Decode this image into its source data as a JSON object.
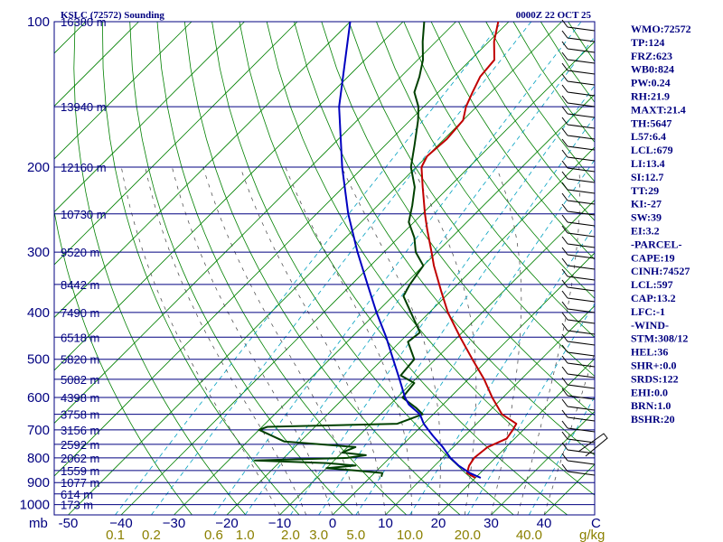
{
  "chart_data": {
    "type": "line",
    "title": "KSLC (72572) Sounding",
    "time_label": "0000Z 22 OCT 25",
    "pressure_levels": [
      100,
      200,
      300,
      400,
      500,
      600,
      700,
      800,
      900,
      1000
    ],
    "pressure_label_text": [
      "100",
      "200",
      "300",
      "400",
      "500",
      "600",
      "700",
      "800",
      "900",
      "1000"
    ],
    "pressure_axis_unit": "mb",
    "height_labels": [
      {
        "p": 150,
        "text": "13940 m"
      },
      {
        "p": 100,
        "text": "16380 m"
      },
      {
        "p": 200,
        "text": "12160 m"
      },
      {
        "p": 250,
        "text": "10730 m"
      },
      {
        "p": 300,
        "text": "9520 m"
      },
      {
        "p": 350,
        "text": "8442 m"
      },
      {
        "p": 400,
        "text": "7490 m"
      },
      {
        "p": 450,
        "text": "6518 m"
      },
      {
        "p": 500,
        "text": "5820 m"
      },
      {
        "p": 550,
        "text": "5082 m"
      },
      {
        "p": 600,
        "text": "4398 m"
      },
      {
        "p": 650,
        "text": "3758 m"
      },
      {
        "p": 700,
        "text": "3156 m"
      },
      {
        "p": 750,
        "text": "2592 m"
      },
      {
        "p": 800,
        "text": "2062 m"
      },
      {
        "p": 850,
        "text": "1559 m"
      },
      {
        "p": 900,
        "text": "1077 m"
      },
      {
        "p": 950,
        "text": "614 m"
      },
      {
        "p": 1000,
        "text": "173 m"
      }
    ],
    "temp_ticks": [
      -50,
      -40,
      -30,
      -20,
      -10,
      0,
      10,
      20,
      30,
      40
    ],
    "temp_tick_text": [
      "-50",
      "−40",
      "−30",
      "−20",
      "−10",
      "0",
      "10",
      "20",
      "30",
      "40"
    ],
    "temp_axis_unit": "C",
    "mixing_ratio_labels": [
      "0.1",
      "0.2",
      "0.6",
      "1.0",
      "2.0",
      "3.0",
      "5.0",
      "10.0",
      "20.0",
      "40.0"
    ],
    "mixing_ratio_unit": "g/kg",
    "series": [
      {
        "name": "",
        "role": "temperature",
        "color": "#c00000",
        "points": [
          [
            880,
            20.0
          ],
          [
            860,
            17.5
          ],
          [
            830,
            16.5
          ],
          [
            800,
            16.0
          ],
          [
            760,
            16.5
          ],
          [
            730,
            18.5
          ],
          [
            700,
            18.0
          ],
          [
            680,
            17.5
          ],
          [
            650,
            13.0
          ],
          [
            600,
            8.0
          ],
          [
            550,
            3.0
          ],
          [
            500,
            -3.0
          ],
          [
            450,
            -9.5
          ],
          [
            400,
            -16.5
          ],
          [
            360,
            -22.0
          ],
          [
            320,
            -28.0
          ],
          [
            300,
            -31.0
          ],
          [
            270,
            -36.0
          ],
          [
            250,
            -39.5
          ],
          [
            220,
            -45.0
          ],
          [
            200,
            -49.0
          ],
          [
            190,
            -50.0
          ],
          [
            175,
            -49.5
          ],
          [
            160,
            -50.0
          ],
          [
            150,
            -52.0
          ],
          [
            140,
            -53.5
          ],
          [
            130,
            -55.0
          ],
          [
            120,
            -55.5
          ],
          [
            110,
            -59.0
          ],
          [
            100,
            -62.0
          ]
        ]
      },
      {
        "name": "",
        "role": "dewpoint",
        "color": "#004000",
        "points": [
          [
            875,
            2.0
          ],
          [
            860,
            1.5
          ],
          [
            850,
            -4.0
          ],
          [
            840,
            -10.0
          ],
          [
            830,
            -5.0
          ],
          [
            820,
            -11.0
          ],
          [
            810,
            -25.0
          ],
          [
            800,
            -8.0
          ],
          [
            790,
            -5.0
          ],
          [
            780,
            -10.0
          ],
          [
            760,
            -8.5
          ],
          [
            740,
            -23.0
          ],
          [
            700,
            -30.0
          ],
          [
            690,
            -29.0
          ],
          [
            680,
            -5.0
          ],
          [
            650,
            -2.0
          ],
          [
            630,
            -4.5
          ],
          [
            600,
            -9.0
          ],
          [
            560,
            -9.5
          ],
          [
            540,
            -13.5
          ],
          [
            500,
            -14.0
          ],
          [
            460,
            -18.5
          ],
          [
            440,
            -18.0
          ],
          [
            400,
            -23.5
          ],
          [
            370,
            -28.0
          ],
          [
            350,
            -29.0
          ],
          [
            320,
            -30.0
          ],
          [
            300,
            -34.0
          ],
          [
            280,
            -37.0
          ],
          [
            260,
            -41.0
          ],
          [
            240,
            -43.5
          ],
          [
            220,
            -46.5
          ],
          [
            200,
            -51.0
          ],
          [
            180,
            -54.5
          ],
          [
            160,
            -58.5
          ],
          [
            150,
            -61.0
          ],
          [
            140,
            -64.5
          ],
          [
            130,
            -66.5
          ],
          [
            120,
            -69.0
          ],
          [
            110,
            -72.5
          ],
          [
            100,
            -76.0
          ]
        ]
      },
      {
        "name": "",
        "role": "parcel",
        "color": "#0000c0",
        "points": [
          [
            880,
            21.0
          ],
          [
            860,
            18.0
          ],
          [
            830,
            14.5
          ],
          [
            800,
            11.5
          ],
          [
            760,
            8.0
          ],
          [
            720,
            4.0
          ],
          [
            700,
            2.0
          ],
          [
            680,
            0.0
          ],
          [
            650,
            -2.5
          ],
          [
            620,
            -6.5
          ],
          [
            600,
            -8.5
          ],
          [
            550,
            -13.0
          ],
          [
            500,
            -18.0
          ],
          [
            450,
            -23.5
          ],
          [
            400,
            -30.0
          ],
          [
            350,
            -37.0
          ],
          [
            300,
            -45.0
          ],
          [
            250,
            -54.0
          ],
          [
            200,
            -64.0
          ],
          [
            150,
            -76.0
          ],
          [
            100,
            -90.0
          ]
        ]
      }
    ],
    "indices": [
      "WMO:72572",
      "TP:124",
      "FRZ:623",
      "WB0:824",
      "PW:0.24",
      "RH:21.9",
      "MAXT:21.4",
      "TH:5647",
      "L57:6.4",
      "LCL:679",
      "LI:13.4",
      "SI:12.7",
      "TT:29",
      "KI:-27",
      "SW:39",
      "EI:3.2",
      "-PARCEL-",
      "CAPE:19",
      "CINH:74527",
      "LCL:597",
      "CAP:13.2",
      "LFC:-1",
      "-WIND-",
      "STM:308/12",
      "HEL:36",
      "SHR+:0.0",
      "SRDS:122",
      "EHI:0.0",
      "BRN:1.0",
      "BSHR:20"
    ],
    "colors": {
      "isobar": "#000080",
      "isotherm": "#008000",
      "dry_adiabat": "#008000",
      "moist_adiabat": "#404040",
      "mixing_ratio": "#00a0c0",
      "text": "#000080",
      "mixing_ratio_text": "#8B8000"
    }
  }
}
